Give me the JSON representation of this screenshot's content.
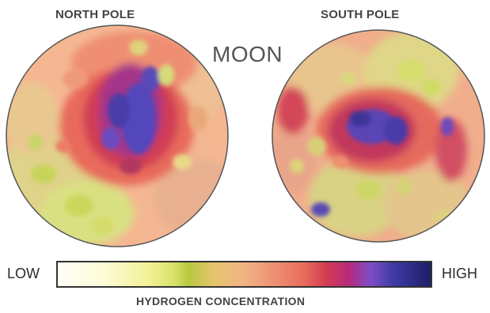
{
  "labels": {
    "north": "NORTH POLE",
    "south": "SOUTH POLE",
    "body": "MOON"
  },
  "scale": {
    "low": "LOW",
    "high": "HIGH",
    "caption": "HYDROGEN CONCENTRATION"
  },
  "colors": {
    "low": "#fffff6",
    "mid": "#f2b384",
    "high": "#1d1f66",
    "border": "#555555"
  }
}
